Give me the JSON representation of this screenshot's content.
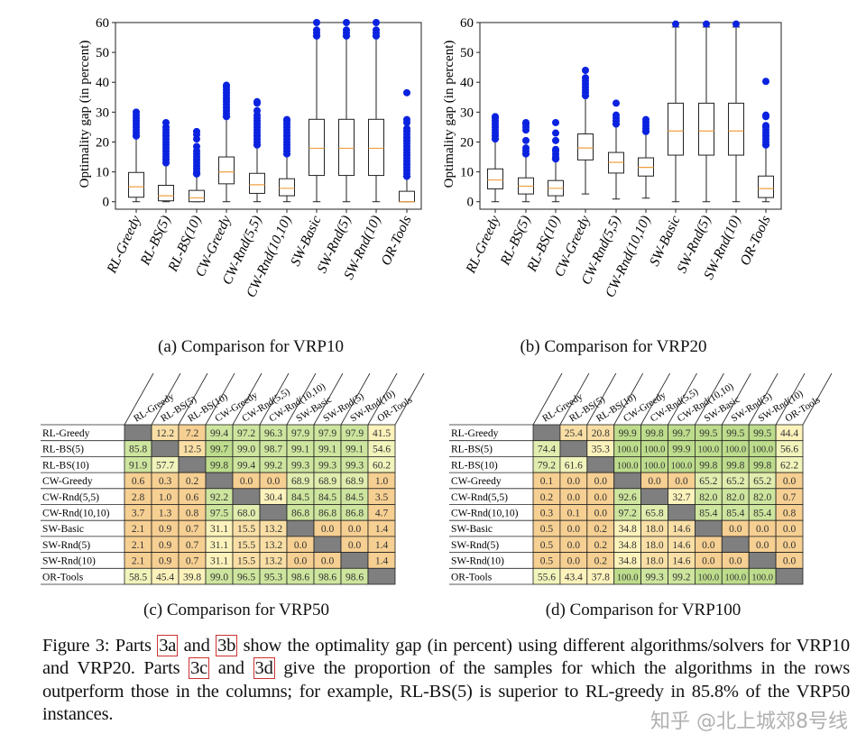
{
  "algorithms": [
    "RL-Greedy",
    "RL-BS(5)",
    "RL-BS(10)",
    "CW-Greedy",
    "CW-Rnd(5,5)",
    "CW-Rnd(10,10)",
    "SW-Basic",
    "SW-Rnd(5)",
    "SW-Rnd(10)",
    "OR-Tools"
  ],
  "colors": {
    "median": "#f0a040",
    "flier": "#0a22e0",
    "diagonal": "#7f7f7f",
    "scale": [
      "#f6cf92",
      "#f9dfa5",
      "#fcf2bb",
      "#f1f4bb",
      "#e0edae",
      "#cde59e",
      "#bddc8c"
    ]
  },
  "subcaptions": {
    "a": "(a) Comparison for VRP10",
    "b": "(b) Comparison for VRP20",
    "c": "(c) Comparison for VRP50",
    "d": "(d) Comparison for VRP100"
  },
  "caption": {
    "p1": "Figure 3: Parts ",
    "ref_a": "3a",
    "p2": " and ",
    "ref_b": "3b",
    "p3": " show the optimality gap (in percent) using different algorithms/solvers for VRP10 and VRP20. Parts ",
    "ref_c": "3c",
    "p4": " and ",
    "ref_d": "3d",
    "p5": " give the proportion of the samples for which the algorithms in the rows outperform those in the columns; for example, RL-BS(5) is superior to RL-greedy in 85.8% of the VRP50 instances.",
    "watermark": "知乎 @北上城郊8号线"
  },
  "chart_data": [
    {
      "type": "box",
      "ylabel": "Optimality gap (in percent)",
      "ylim": [
        -2.5,
        60
      ],
      "yticks": [
        0,
        10,
        20,
        30,
        40,
        50,
        60
      ],
      "grid": false,
      "categories": [
        "RL-Greedy",
        "RL-BS(5)",
        "RL-BS(10)",
        "CW-Greedy",
        "CW-Rnd(5,5)",
        "CW-Rnd(10,10)",
        "SW-Basic",
        "SW-Rnd(5)",
        "SW-Rnd(10)",
        "OR-Tools"
      ],
      "boxes": [
        {
          "whislo": 0,
          "q1": 1.5,
          "med": 5,
          "q3": 9.8,
          "whishi": 22,
          "fliers": [
            22,
            23,
            24,
            25,
            26,
            27,
            28,
            29,
            30
          ]
        },
        {
          "whislo": 0,
          "q1": 0.3,
          "med": 2,
          "q3": 5.5,
          "whishi": 13,
          "fliers": [
            13,
            14,
            15,
            16,
            17,
            18,
            19,
            20,
            21,
            22,
            23,
            24,
            25,
            26.5
          ]
        },
        {
          "whislo": 0,
          "q1": 0,
          "med": 1.3,
          "q3": 3.8,
          "whishi": 9.3,
          "fliers": [
            9.3,
            10,
            11,
            12,
            13,
            14,
            15,
            16,
            17,
            18.5,
            21,
            22.5,
            23.5
          ]
        },
        {
          "whislo": 0,
          "q1": 6,
          "med": 10,
          "q3": 15,
          "whishi": 28.5,
          "fliers": [
            28.5,
            29.5,
            30.5,
            31.5,
            32.5,
            33.5,
            34.5,
            35.5,
            36.5,
            37.5,
            38.5,
            39
          ]
        },
        {
          "whislo": 0,
          "q1": 2.8,
          "med": 5.7,
          "q3": 9.5,
          "whishi": 19,
          "fliers": [
            19,
            20,
            21,
            22,
            23,
            24,
            25,
            26,
            27,
            28,
            29,
            30.5,
            33,
            33.5
          ]
        },
        {
          "whislo": 0,
          "q1": 2,
          "med": 4.5,
          "q3": 7.7,
          "whishi": 16,
          "fliers": [
            16,
            17,
            18,
            19,
            20,
            21,
            22,
            23,
            24,
            25,
            26,
            27,
            27.5
          ]
        },
        {
          "whislo": 0,
          "q1": 8.8,
          "med": 17.9,
          "q3": 27.6,
          "whishi": 55.5,
          "fliers": [
            55.5,
            56.5,
            57.5,
            60
          ]
        },
        {
          "whislo": 0,
          "q1": 8.8,
          "med": 17.9,
          "q3": 27.6,
          "whishi": 55.5,
          "fliers": [
            55.5,
            56.5,
            57.5,
            60
          ]
        },
        {
          "whislo": 0,
          "q1": 8.8,
          "med": 17.9,
          "q3": 27.6,
          "whishi": 55.5,
          "fliers": [
            55.5,
            56.5,
            57.5,
            60
          ]
        },
        {
          "whislo": 0,
          "q1": 0,
          "med": 0,
          "q3": 3.5,
          "whishi": 8.5,
          "fliers": [
            8.5,
            9.5,
            10.5,
            11.5,
            12.5,
            13.5,
            14.5,
            15.5,
            16.5,
            17.5,
            18.5,
            19.5,
            20.5,
            21.5,
            22.5,
            23.5,
            24.5,
            26.5,
            27.5,
            36.5
          ]
        }
      ]
    },
    {
      "type": "box",
      "ylabel": "Optimality gap (in percent)",
      "ylim": [
        -2.5,
        60
      ],
      "yticks": [
        0,
        10,
        20,
        30,
        40,
        50,
        60
      ],
      "grid": false,
      "categories": [
        "RL-Greedy",
        "RL-BS(5)",
        "RL-BS(10)",
        "CW-Greedy",
        "CW-Rnd(5,5)",
        "CW-Rnd(10,10)",
        "SW-Basic",
        "SW-Rnd(5)",
        "SW-Rnd(10)",
        "OR-Tools"
      ],
      "boxes": [
        {
          "whislo": 0,
          "q1": 4.3,
          "med": 7.3,
          "q3": 11,
          "whishi": 21,
          "fliers": [
            21,
            22,
            23,
            24,
            25,
            26,
            27,
            28,
            28.5
          ]
        },
        {
          "whislo": 0,
          "q1": 2.6,
          "med": 5.2,
          "q3": 8,
          "whishi": 16,
          "fliers": [
            16,
            17,
            18,
            20.5,
            24,
            25,
            26,
            26.5
          ]
        },
        {
          "whislo": 0,
          "q1": 2,
          "med": 4.5,
          "q3": 7.1,
          "whishi": 14.3,
          "fliers": [
            14.3,
            15,
            16,
            17,
            17.5,
            20.5,
            23,
            26.5
          ]
        },
        {
          "whislo": 2.6,
          "q1": 14,
          "med": 18,
          "q3": 22.7,
          "whishi": 35.5,
          "fliers": [
            35.5,
            36.5,
            37.5,
            38.5,
            39.5,
            40.5,
            41.5,
            44
          ]
        },
        {
          "whislo": 0.9,
          "q1": 9.6,
          "med": 13.2,
          "q3": 16.5,
          "whishi": 26,
          "fliers": [
            26,
            27,
            28,
            29,
            33
          ]
        },
        {
          "whislo": 1.2,
          "q1": 8.6,
          "med": 11.5,
          "q3": 14.7,
          "whishi": 23.5,
          "fliers": [
            23.5,
            24.5,
            25.5,
            26.5,
            27.5
          ]
        },
        {
          "whislo": 0,
          "q1": 15.6,
          "med": 23.7,
          "q3": 33,
          "whishi": 58.5,
          "fliers": [
            59.5
          ]
        },
        {
          "whislo": 0,
          "q1": 15.6,
          "med": 23.7,
          "q3": 33,
          "whishi": 58.5,
          "fliers": [
            59.5
          ]
        },
        {
          "whislo": 0,
          "q1": 15.6,
          "med": 23.7,
          "q3": 33,
          "whishi": 58.5,
          "fliers": [
            59.5
          ]
        },
        {
          "whislo": 0,
          "q1": 1.4,
          "med": 4.4,
          "q3": 8.6,
          "whishi": 19,
          "fliers": [
            19,
            20,
            21,
            22,
            23,
            24,
            25,
            25.5,
            28.5,
            29,
            40.3
          ]
        }
      ]
    },
    {
      "type": "table",
      "rows": [
        "RL-Greedy",
        "RL-BS(5)",
        "RL-BS(10)",
        "CW-Greedy",
        "CW-Rnd(5,5)",
        "CW-Rnd(10,10)",
        "SW-Basic",
        "SW-Rnd(5)",
        "SW-Rnd(10)",
        "OR-Tools"
      ],
      "columns": [
        "RL-Greedy",
        "RL-BS(5)",
        "RL-BS(10)",
        "CW-Greedy",
        "CW-Rnd(5,5)",
        "CW-Rnd(10,10)",
        "SW-Basic",
        "SW-Rnd(5)",
        "SW-Rnd(10)",
        "OR-Tools"
      ],
      "values": [
        [
          null,
          "12.2",
          "7.2",
          "99.4",
          "97.2",
          "96.3",
          "97.9",
          "97.9",
          "97.9",
          "41.5"
        ],
        [
          "85.8",
          null,
          "12.5",
          "99.7",
          "99.0",
          "98.7",
          "99.1",
          "99.1",
          "99.1",
          "54.6"
        ],
        [
          "91.9",
          "57.7",
          null,
          "99.8",
          "99.4",
          "99.2",
          "99.3",
          "99.3",
          "99.3",
          "60.2"
        ],
        [
          "0.6",
          "0.3",
          "0.2",
          null,
          "0.0",
          "0.0",
          "68.9",
          "68.9",
          "68.9",
          "1.0"
        ],
        [
          "2.8",
          "1.0",
          "0.6",
          "92.2",
          null,
          "30.4",
          "84.5",
          "84.5",
          "84.5",
          "3.5"
        ],
        [
          "3.7",
          "1.3",
          "0.8",
          "97.5",
          "68.0",
          null,
          "86.8",
          "86.8",
          "86.8",
          "4.7"
        ],
        [
          "2.1",
          "0.9",
          "0.7",
          "31.1",
          "15.5",
          "13.2",
          null,
          "0.0",
          "0.0",
          "1.4"
        ],
        [
          "2.1",
          "0.9",
          "0.7",
          "31.1",
          "15.5",
          "13.2",
          "0.0",
          null,
          "0.0",
          "1.4"
        ],
        [
          "2.1",
          "0.9",
          "0.7",
          "31.1",
          "15.5",
          "13.2",
          "0.0",
          "0.0",
          null,
          "1.4"
        ],
        [
          "58.5",
          "45.4",
          "39.8",
          "99.0",
          "96.5",
          "95.3",
          "98.6",
          "98.6",
          "98.6",
          null
        ]
      ]
    },
    {
      "type": "table",
      "rows": [
        "RL-Greedy",
        "RL-BS(5)",
        "RL-BS(10)",
        "CW-Greedy",
        "CW-Rnd(5,5)",
        "CW-Rnd(10,10)",
        "SW-Basic",
        "SW-Rnd(5)",
        "SW-Rnd(10)",
        "OR-Tools"
      ],
      "columns": [
        "RL-Greedy",
        "RL-BS(5)",
        "RL-BS(10)",
        "CW-Greedy",
        "CW-Rnd(5,5)",
        "CW-Rnd(10,10)",
        "SW-Basic",
        "SW-Rnd(5)",
        "SW-Rnd(10)",
        "OR-Tools"
      ],
      "values": [
        [
          null,
          "25.4",
          "20.8",
          "99.9",
          "99.8",
          "99.7",
          "99.5",
          "99.5",
          "99.5",
          "44.4"
        ],
        [
          "74.4",
          null,
          "35.3",
          "100.0",
          "100.0",
          "99.9",
          "100.0",
          "100.0",
          "100.0",
          "56.6"
        ],
        [
          "79.2",
          "61.6",
          null,
          "100.0",
          "100.0",
          "100.0",
          "99.8",
          "99.8",
          "99.8",
          "62.2"
        ],
        [
          "0.1",
          "0.0",
          "0.0",
          null,
          "0.0",
          "0.0",
          "65.2",
          "65.2",
          "65.2",
          "0.0"
        ],
        [
          "0.2",
          "0.0",
          "0.0",
          "92.6",
          null,
          "32.7",
          "82.0",
          "82.0",
          "82.0",
          "0.7"
        ],
        [
          "0.3",
          "0.1",
          "0.0",
          "97.2",
          "65.8",
          null,
          "85.4",
          "85.4",
          "85.4",
          "0.8"
        ],
        [
          "0.5",
          "0.0",
          "0.2",
          "34.8",
          "18.0",
          "14.6",
          null,
          "0.0",
          "0.0",
          "0.0"
        ],
        [
          "0.5",
          "0.0",
          "0.2",
          "34.8",
          "18.0",
          "14.6",
          "0.0",
          null,
          "0.0",
          "0.0"
        ],
        [
          "0.5",
          "0.0",
          "0.2",
          "34.8",
          "18.0",
          "14.6",
          "0.0",
          "0.0",
          null,
          "0.0"
        ],
        [
          "55.6",
          "43.4",
          "37.8",
          "100.0",
          "99.3",
          "99.2",
          "100.0",
          "100.0",
          "100.0",
          null
        ]
      ]
    }
  ]
}
